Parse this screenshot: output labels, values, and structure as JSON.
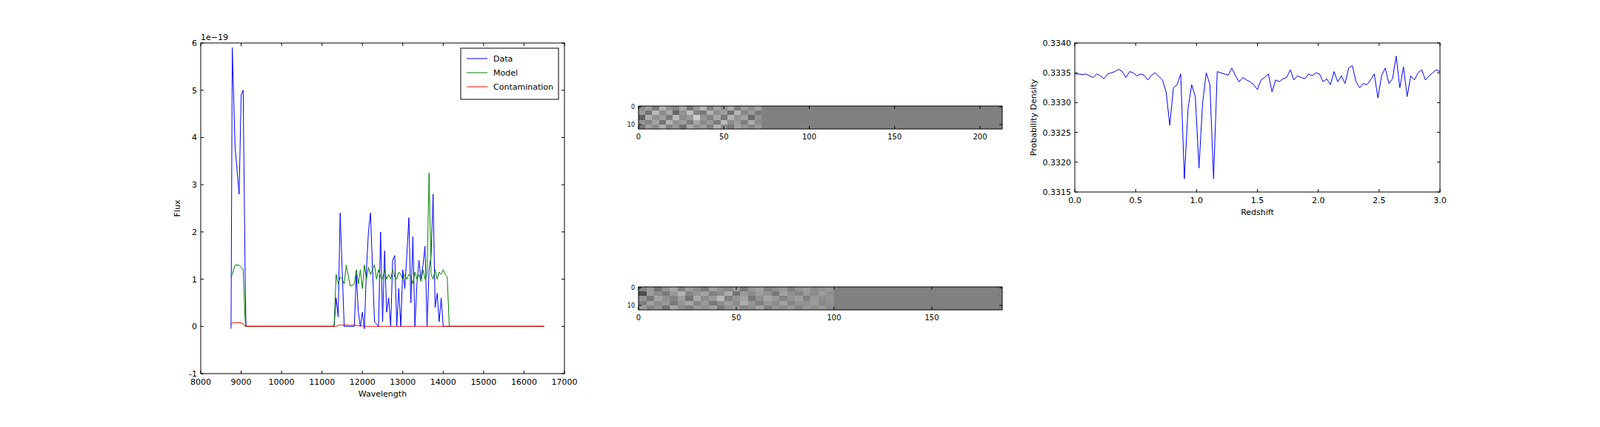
{
  "chart_data": [
    {
      "type": "line",
      "x_label": "Wavelength",
      "y_label": "Flux",
      "annotations": [
        "1e−19"
      ],
      "legend": "upper right",
      "xlim": [
        8000,
        17000
      ],
      "xticks": [
        8000,
        9000,
        10000,
        11000,
        12000,
        13000,
        14000,
        15000,
        16000,
        17000
      ],
      "ylim": [
        -1,
        6
      ],
      "yticks": [
        -1,
        0,
        1,
        2,
        3,
        4,
        5,
        6
      ],
      "x": [
        8750,
        8780,
        8850,
        8950,
        9000,
        9050,
        9100,
        9120,
        9150,
        10000,
        11000,
        11300,
        11350,
        11400,
        11450,
        11500,
        11550,
        11600,
        11700,
        11800,
        11850,
        11900,
        11950,
        12000,
        12050,
        12100,
        12150,
        12200,
        12300,
        12350,
        12400,
        12450,
        12500,
        12550,
        12600,
        12650,
        12700,
        12750,
        12800,
        12850,
        12900,
        12950,
        13000,
        13050,
        13100,
        13150,
        13200,
        13250,
        13300,
        13350,
        13400,
        13450,
        13500,
        13550,
        13600,
        13650,
        13700,
        13750,
        13800,
        13850,
        13900,
        13950,
        14000,
        14050,
        14100,
        14150,
        14200,
        15000,
        16000,
        16500
      ],
      "series": [
        {
          "name": "Data",
          "color": "#0000ff",
          "values": [
            -0.05,
            5.9,
            3.8,
            2.8,
            4.9,
            5.0,
            1.0,
            0,
            0,
            0,
            0,
            0,
            0.6,
            0.2,
            2.4,
            1.2,
            0.0,
            0,
            0,
            0.0,
            1.1,
            0.3,
            0,
            0.3,
            -0.05,
            1.2,
            2.0,
            2.4,
            0.1,
            0.05,
            0,
            2.0,
            0.1,
            1.6,
            0.3,
            0.6,
            0.0,
            1.4,
            1.5,
            0,
            0.8,
            0.0,
            1.2,
            0.8,
            1.5,
            2.3,
            0.5,
            1.9,
            0.0,
            0.9,
            1.4,
            1.0,
            1.3,
            1.7,
            0.0,
            1.2,
            1.5,
            2.8,
            0.4,
            0.7,
            0.1,
            0.6,
            0,
            0,
            0,
            0,
            0,
            0,
            0,
            0
          ]
        },
        {
          "name": "Model",
          "color": "#008000",
          "values": [
            1.05,
            1.1,
            1.3,
            1.3,
            1.25,
            1.2,
            0.1,
            0,
            0,
            0,
            0,
            0,
            1.1,
            0.9,
            1.05,
            1.0,
            0.9,
            1.3,
            0.85,
            0.9,
            1.2,
            0.9,
            1.2,
            0.8,
            1.3,
            1.0,
            1.25,
            1.1,
            1.3,
            1.0,
            1.2,
            1.05,
            1.0,
            1.2,
            1.0,
            1.1,
            1.0,
            1.2,
            1.05,
            1.0,
            1.15,
            1.1,
            1.0,
            1.1,
            1.0,
            1.1,
            1.05,
            0.9,
            1.15,
            1.0,
            1.1,
            0.95,
            1.2,
            1.0,
            1.1,
            3.25,
            1.1,
            1.0,
            1.2,
            1.0,
            1.15,
            1.1,
            1.2,
            1.1,
            1.05,
            0,
            0,
            0,
            0,
            0
          ]
        },
        {
          "name": "Contamination",
          "color": "#ff0000",
          "values": [
            0.05,
            0.07,
            0.08,
            0.08,
            0.07,
            0.06,
            0.0,
            0,
            0,
            0,
            0,
            0,
            0.0,
            0.02,
            0.03,
            0.03,
            0.02,
            0.03,
            0.02,
            0.03,
            0.02,
            0.01,
            0.01,
            0.01,
            0.01,
            0,
            0,
            0,
            0,
            0,
            0,
            0,
            0,
            0,
            0,
            0,
            0,
            0,
            0,
            0,
            0,
            0,
            0,
            0,
            0,
            0,
            0,
            0,
            0,
            0,
            0,
            0,
            0,
            0,
            0,
            0,
            0,
            0,
            0,
            0,
            0,
            0,
            0,
            0,
            0,
            0,
            0,
            0,
            0,
            0
          ]
        }
      ]
    },
    {
      "type": "heatmap",
      "xlim": [
        0,
        213
      ],
      "xticks": [
        0,
        50,
        100,
        150,
        200
      ],
      "ylim": [
        12.5,
        -0.5
      ],
      "yticks": [
        0,
        10
      ],
      "x_edges": [
        0,
        4,
        8,
        12,
        16,
        20,
        24,
        28,
        32,
        36,
        40,
        44,
        48,
        52,
        56,
        60,
        64,
        68,
        72,
        213
      ],
      "y_edges": [
        -0.5,
        2.1,
        4.7,
        7.3,
        9.9,
        12.5
      ],
      "cells": [
        [
          0.55,
          0.62,
          0.48,
          0.7,
          0.58,
          0.52,
          0.66,
          0.45,
          0.6,
          0.72,
          0.5,
          0.63,
          0.57,
          0.68,
          0.49,
          0.61,
          0.55,
          0.64,
          0.5
        ],
        [
          0.6,
          0.45,
          0.72,
          0.55,
          0.66,
          0.4,
          0.58,
          0.75,
          0.52,
          0.47,
          0.69,
          0.56,
          0.62,
          0.44,
          0.71,
          0.53,
          0.6,
          0.48,
          0.5
        ],
        [
          0.38,
          0.68,
          0.57,
          0.62,
          0.48,
          0.73,
          0.55,
          0.6,
          0.8,
          0.58,
          0.52,
          0.66,
          0.47,
          0.7,
          0.58,
          0.63,
          0.42,
          0.57,
          0.5
        ],
        [
          0.58,
          0.52,
          0.64,
          0.45,
          0.7,
          0.57,
          0.62,
          0.49,
          0.65,
          0.54,
          0.6,
          0.48,
          0.73,
          0.55,
          0.61,
          0.5,
          0.67,
          0.55,
          0.5
        ],
        [
          0.47,
          0.63,
          0.55,
          0.68,
          0.52,
          0.6,
          0.44,
          0.67,
          0.57,
          0.62,
          0.5,
          0.7,
          0.56,
          0.48,
          0.64,
          0.58,
          0.52,
          0.61,
          0.5
        ]
      ]
    },
    {
      "type": "heatmap",
      "xlim": [
        0,
        186
      ],
      "xticks": [
        0,
        50,
        100,
        150
      ],
      "ylim": [
        12.5,
        -0.5
      ],
      "yticks": [
        0,
        10
      ],
      "x_edges": [
        0,
        4,
        8,
        12,
        16,
        20,
        24,
        28,
        32,
        36,
        40,
        44,
        48,
        52,
        56,
        60,
        64,
        68,
        72,
        76,
        80,
        84,
        88,
        92,
        96,
        100,
        186
      ],
      "y_edges": [
        -0.5,
        2.1,
        4.7,
        7.3,
        9.9,
        12.5
      ],
      "cells": [
        [
          0.52,
          0.6,
          0.45,
          0.58,
          0.66,
          0.5,
          0.62,
          0.55,
          0.48,
          0.64,
          0.57,
          0.53,
          0.61,
          0.47,
          0.59,
          0.63,
          0.51,
          0.56,
          0.6,
          0.49,
          0.58,
          0.62,
          0.54,
          0.57,
          0.6,
          0.5
        ],
        [
          0.3,
          0.62,
          0.55,
          0.48,
          0.6,
          0.7,
          0.52,
          0.58,
          0.64,
          0.5,
          0.56,
          0.68,
          0.45,
          0.6,
          0.55,
          0.62,
          0.58,
          0.47,
          0.63,
          0.57,
          0.52,
          0.6,
          0.55,
          0.61,
          0.56,
          0.5
        ],
        [
          0.58,
          0.47,
          0.64,
          0.57,
          0.52,
          0.62,
          0.45,
          0.66,
          0.55,
          0.6,
          0.72,
          0.5,
          0.58,
          0.63,
          0.48,
          0.57,
          0.65,
          0.6,
          0.52,
          0.58,
          0.62,
          0.5,
          0.6,
          0.56,
          0.58,
          0.5
        ],
        [
          0.5,
          0.63,
          0.55,
          0.6,
          0.48,
          0.58,
          0.65,
          0.52,
          0.6,
          0.47,
          0.56,
          0.62,
          0.55,
          0.68,
          0.58,
          0.5,
          0.6,
          0.55,
          0.63,
          0.52,
          0.58,
          0.57,
          0.61,
          0.53,
          0.57,
          0.5
        ],
        [
          0.62,
          0.52,
          0.58,
          0.45,
          0.65,
          0.55,
          0.5,
          0.6,
          0.57,
          0.63,
          0.48,
          0.58,
          0.61,
          0.52,
          0.56,
          0.64,
          0.5,
          0.58,
          0.55,
          0.6,
          0.52,
          0.59,
          0.56,
          0.6,
          0.55,
          0.5
        ]
      ]
    },
    {
      "type": "line",
      "x_label": "Redshift",
      "y_label": "Probability Density",
      "xlim": [
        0,
        3
      ],
      "xticks": [
        {
          "value": 0,
          "label": "0.0"
        },
        0.5,
        {
          "value": 1,
          "label": "1.0"
        },
        1.5,
        {
          "value": 2,
          "label": "2.0"
        },
        2.5,
        {
          "value": 3,
          "label": "3.0"
        }
      ],
      "ylim": [
        0.3315,
        0.334
      ],
      "yticks": [
        0.3315,
        {
          "value": 0.332,
          "label": "0.3320"
        },
        0.3325,
        {
          "value": 0.333,
          "label": "0.3330"
        },
        0.3335,
        {
          "value": 0.334,
          "label": "0.3340"
        }
      ],
      "x": [
        0.0,
        0.03,
        0.06,
        0.09,
        0.12,
        0.15,
        0.18,
        0.21,
        0.24,
        0.27,
        0.3,
        0.33,
        0.36,
        0.39,
        0.42,
        0.45,
        0.48,
        0.51,
        0.54,
        0.57,
        0.6,
        0.63,
        0.66,
        0.69,
        0.72,
        0.75,
        0.78,
        0.81,
        0.84,
        0.87,
        0.9,
        0.93,
        0.96,
        0.99,
        1.02,
        1.05,
        1.08,
        1.11,
        1.14,
        1.17,
        1.2,
        1.23,
        1.26,
        1.29,
        1.32,
        1.35,
        1.38,
        1.41,
        1.44,
        1.47,
        1.5,
        1.53,
        1.56,
        1.59,
        1.62,
        1.65,
        1.68,
        1.71,
        1.74,
        1.77,
        1.8,
        1.83,
        1.86,
        1.89,
        1.92,
        1.95,
        1.98,
        2.01,
        2.04,
        2.07,
        2.1,
        2.13,
        2.16,
        2.19,
        2.22,
        2.25,
        2.28,
        2.31,
        2.34,
        2.37,
        2.4,
        2.43,
        2.46,
        2.49,
        2.52,
        2.55,
        2.58,
        2.61,
        2.64,
        2.67,
        2.7,
        2.73,
        2.76,
        2.79,
        2.82,
        2.85,
        2.88,
        2.91,
        2.94,
        2.97,
        3.0
      ],
      "series": [
        {
          "color": "#0000ff",
          "values": [
            0.33348,
            0.33348,
            0.33347,
            0.33348,
            0.33345,
            0.33342,
            0.33348,
            0.33345,
            0.3334,
            0.33348,
            0.3335,
            0.33352,
            0.33356,
            0.33352,
            0.33342,
            0.33352,
            0.3335,
            0.33345,
            0.33348,
            0.33346,
            0.33338,
            0.33346,
            0.3335,
            0.33344,
            0.33338,
            0.33318,
            0.33262,
            0.33325,
            0.3333,
            0.33348,
            0.33172,
            0.3329,
            0.3333,
            0.3331,
            0.3319,
            0.333,
            0.3335,
            0.3333,
            0.33172,
            0.33352,
            0.3335,
            0.33348,
            0.33346,
            0.33358,
            0.33345,
            0.33335,
            0.33342,
            0.33338,
            0.33335,
            0.3333,
            0.33322,
            0.33338,
            0.33342,
            0.33348,
            0.33318,
            0.33338,
            0.33335,
            0.3334,
            0.33342,
            0.33355,
            0.33338,
            0.33345,
            0.33342,
            0.3334,
            0.33348,
            0.33345,
            0.3335,
            0.33348,
            0.33335,
            0.3334,
            0.3333,
            0.33352,
            0.33335,
            0.33345,
            0.33332,
            0.33358,
            0.33362,
            0.33335,
            0.33325,
            0.33332,
            0.3333,
            0.33338,
            0.33348,
            0.33308,
            0.33345,
            0.33358,
            0.33332,
            0.3334,
            0.33378,
            0.33325,
            0.3336,
            0.3331,
            0.33345,
            0.33338,
            0.3335,
            0.33355,
            0.33338,
            0.33345,
            0.3335,
            0.33355,
            0.33352
          ]
        }
      ]
    }
  ]
}
